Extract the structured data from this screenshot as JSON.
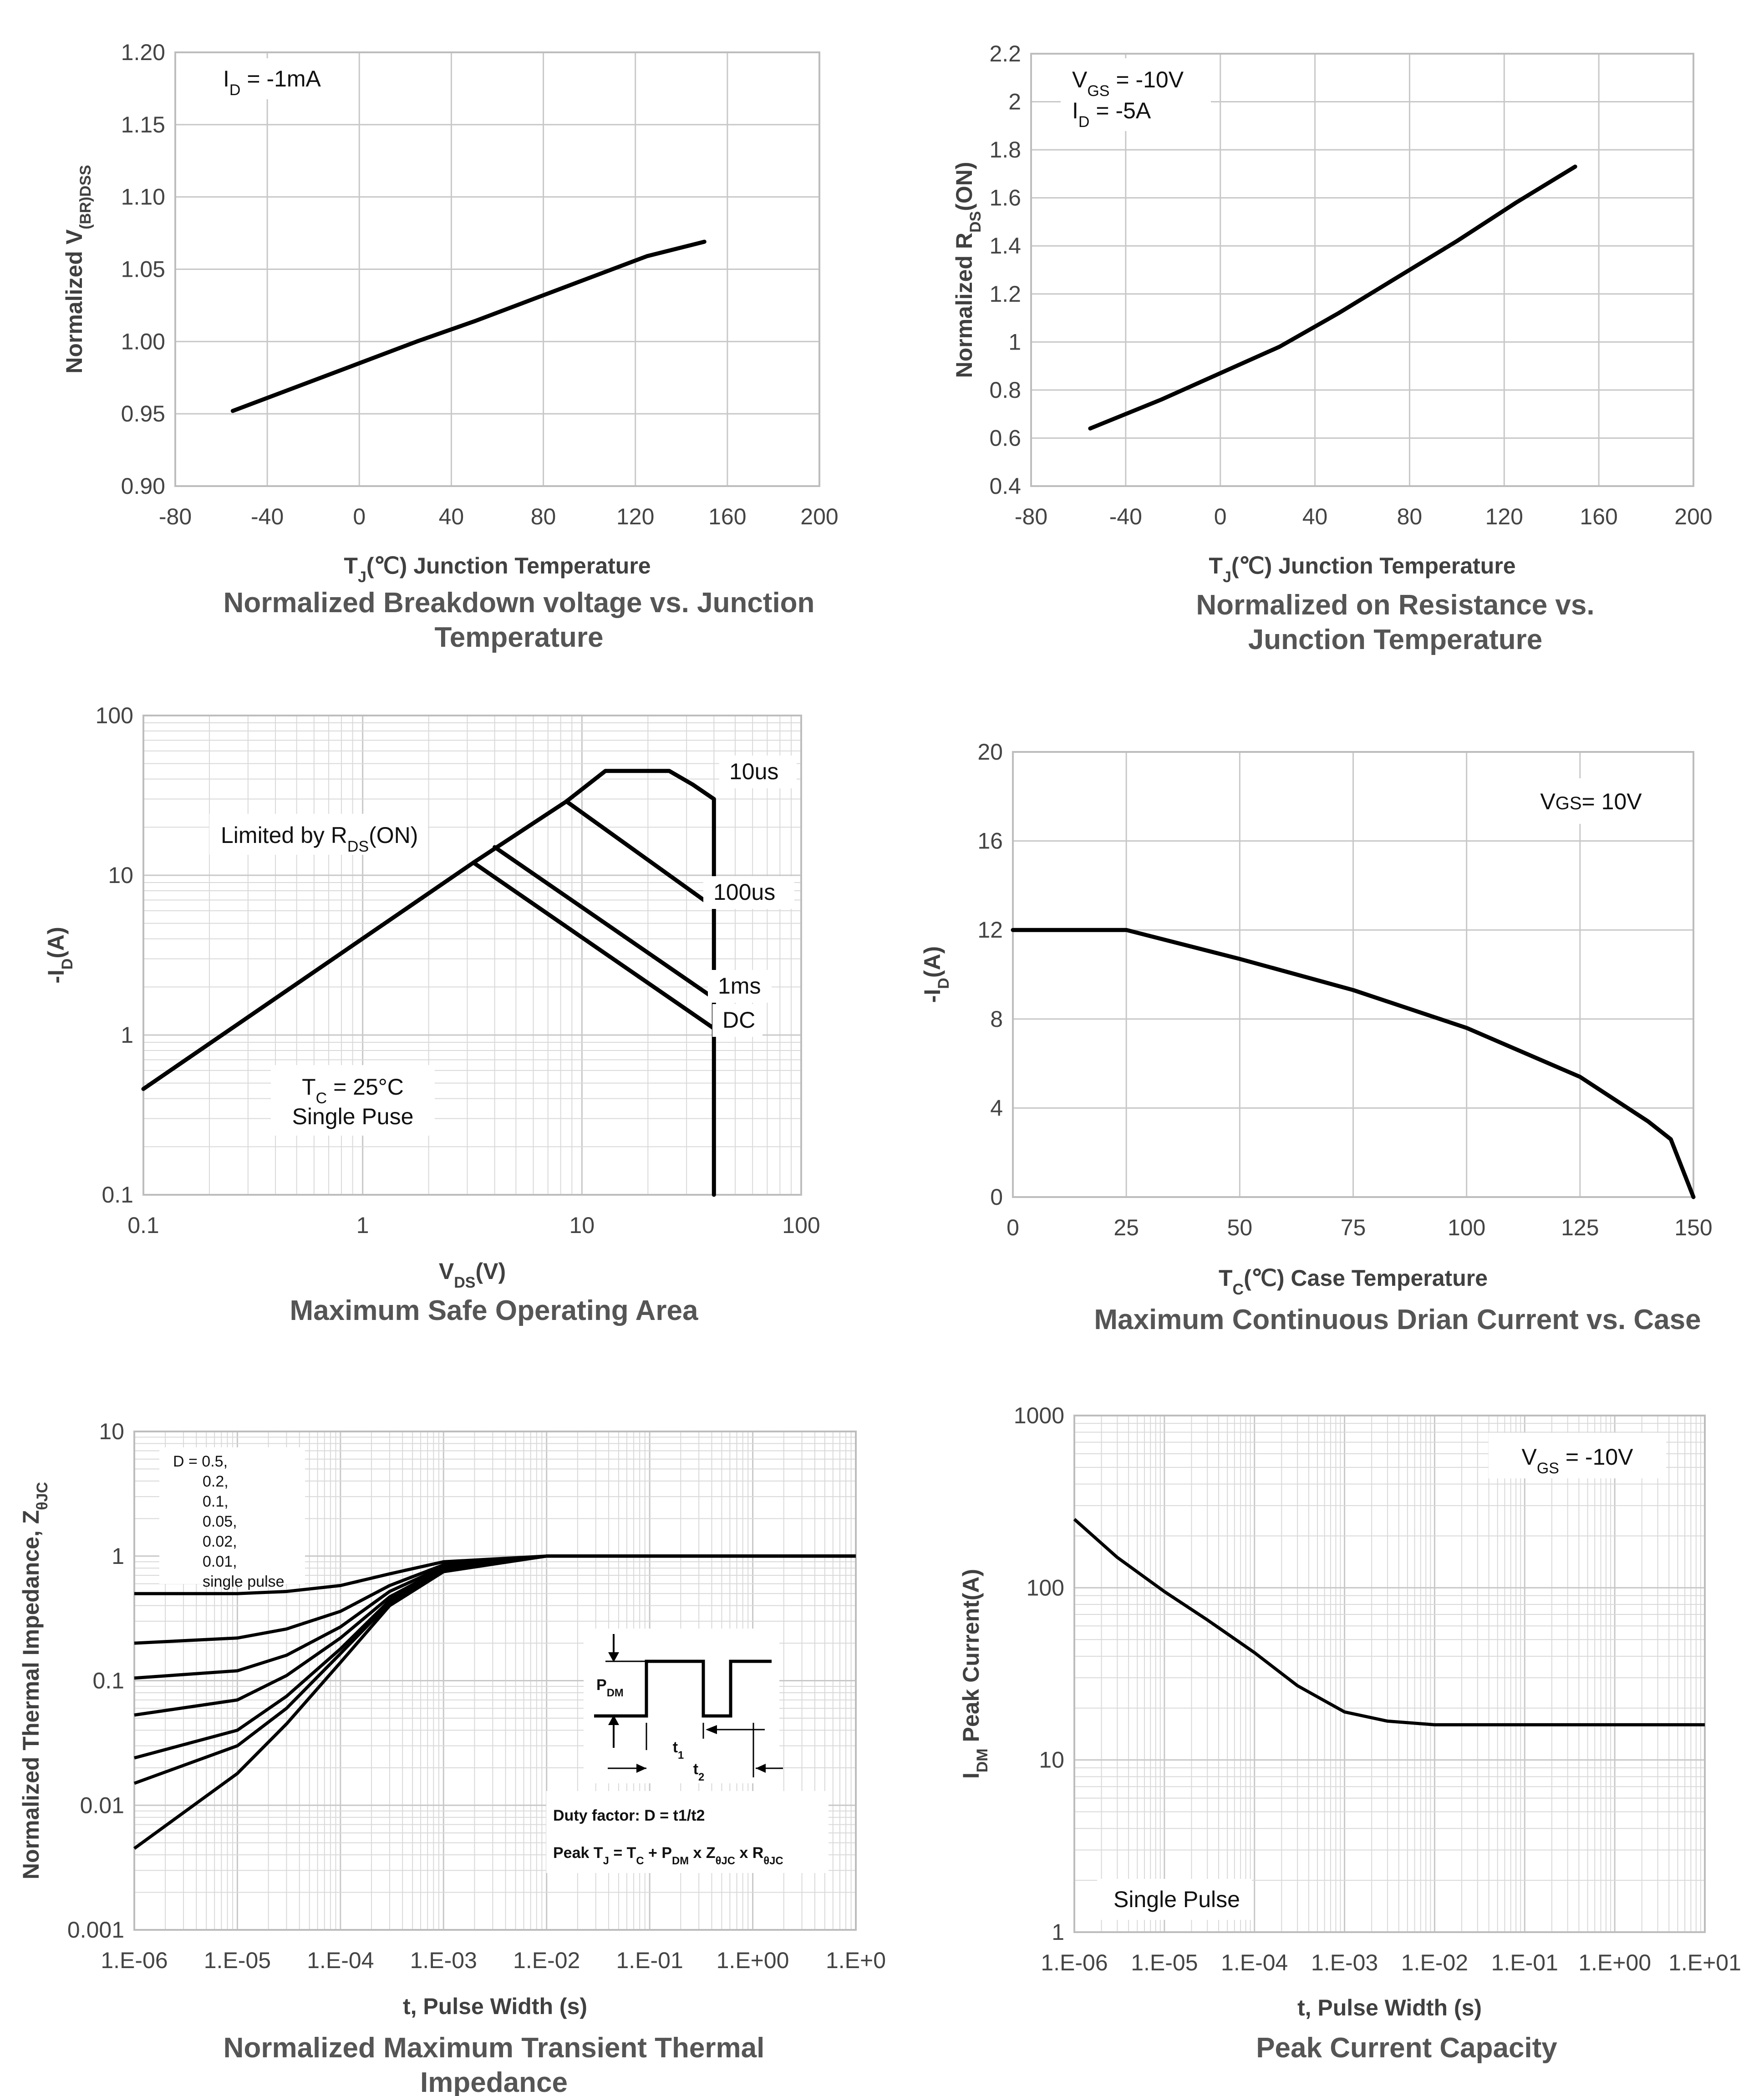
{
  "chart_data": [
    {
      "id": "bv",
      "type": "line",
      "title": [
        "Normalized Breakdown voltage vs. Junction",
        "Temperature"
      ],
      "xlabel": "T_J(℃) Junction Temperature",
      "ylabel": "Normalized V_(BR)DSS",
      "xlim": [
        -80,
        200
      ],
      "ylim": [
        0.9,
        1.2
      ],
      "xticks": [
        "-80",
        "-40",
        "0",
        "40",
        "80",
        "120",
        "160",
        "200"
      ],
      "yticks": [
        "0.90",
        "0.95",
        "1.00",
        "1.05",
        "1.10",
        "1.15",
        "1.20"
      ],
      "annotation": [
        "I_D = -1mA"
      ],
      "series": [
        {
          "x": [
            -55,
            0,
            25,
            50,
            75,
            100,
            125,
            150
          ],
          "y": [
            0.952,
            0.985,
            1.0,
            1.014,
            1.029,
            1.044,
            1.059,
            1.069
          ]
        }
      ]
    },
    {
      "id": "rds",
      "type": "line",
      "title": [
        "Normalized on Resistance vs.",
        "Junction Temperature"
      ],
      "xlabel": "T_J(℃) Junction Temperature",
      "ylabel": "Normalized R_DS(ON)",
      "xlim": [
        -80,
        200
      ],
      "ylim": [
        0.4,
        2.2
      ],
      "xticks": [
        "-80",
        "-40",
        "0",
        "40",
        "80",
        "120",
        "160",
        "200"
      ],
      "yticks": [
        "0.4",
        "0.6",
        "0.8",
        "1",
        "1.2",
        "1.4",
        "1.6",
        "1.8",
        "2",
        "2.2"
      ],
      "annotation": [
        "V_GS = -10V",
        "I_D = -5A"
      ],
      "series": [
        {
          "x": [
            -55,
            -25,
            0,
            25,
            50,
            75,
            100,
            125,
            150
          ],
          "y": [
            0.64,
            0.76,
            0.87,
            0.98,
            1.12,
            1.27,
            1.42,
            1.58,
            1.73
          ]
        }
      ]
    },
    {
      "id": "soa",
      "type": "line",
      "title": [
        "Maximum Safe Operating Area"
      ],
      "xlabel": "V_DS(V)",
      "ylabel": "-I_D(A)",
      "xscale": "log",
      "yscale": "log",
      "xlim": [
        0.1,
        100
      ],
      "ylim": [
        0.1,
        100
      ],
      "xticks": [
        "0.1",
        "1",
        "10",
        "100"
      ],
      "yticks": [
        "0.1",
        "1",
        "10",
        "100"
      ],
      "annotations": [
        "Limited by R_DS(ON)",
        "T_C = 25°C",
        "Single Puse"
      ],
      "series": [
        {
          "name": "10us",
          "x": [
            0.1,
            3.2,
            8.5,
            12.8,
            25,
            32,
            40,
            40
          ],
          "y": [
            0.46,
            12,
            29,
            45,
            45,
            37,
            30,
            0.1
          ]
        },
        {
          "name": "100us",
          "x": [
            8.5,
            40
          ],
          "y": [
            29,
            6.3
          ]
        },
        {
          "name": "1ms",
          "x": [
            4,
            40
          ],
          "y": [
            15,
            1.7
          ]
        },
        {
          "name": "DC",
          "x": [
            3.2,
            40
          ],
          "y": [
            12,
            1.1
          ]
        }
      ]
    },
    {
      "id": "idcase",
      "type": "line",
      "title": [
        "Maximum Continuous Drian Current vs. Case"
      ],
      "xlabel": "T_C(℃) Case Temperature",
      "ylabel": "-I_D(A)",
      "xlim": [
        0,
        150
      ],
      "ylim": [
        0,
        20
      ],
      "xticks": [
        "0",
        "25",
        "50",
        "75",
        "100",
        "125",
        "150"
      ],
      "yticks": [
        "0",
        "4",
        "8",
        "12",
        "16",
        "20"
      ],
      "annotation": [
        "VGS= 10V"
      ],
      "series": [
        {
          "x": [
            0,
            25,
            50,
            75,
            100,
            125,
            140,
            145,
            150
          ],
          "y": [
            12,
            12,
            10.7,
            9.3,
            7.6,
            5.4,
            3.4,
            2.6,
            0
          ]
        }
      ]
    },
    {
      "id": "zth",
      "type": "line",
      "title": [
        "Normalized Maximum Transient Thermal",
        "Impedance"
      ],
      "xlabel": "t, Pulse Width (s)",
      "ylabel": "Normalized Thermal Impedance, Z_θJC",
      "xscale": "log",
      "yscale": "log",
      "xlim": [
        1e-06,
        10
      ],
      "ylim": [
        0.001,
        10
      ],
      "xticks": [
        "1.E-06",
        "1.E-05",
        "1.E-04",
        "1.E-03",
        "1.E-02",
        "1.E-01",
        "1.E+00",
        "1.E+0"
      ],
      "yticks": [
        "0.001",
        "0.01",
        "0.1",
        "1",
        "10"
      ],
      "legend_labels": [
        "D = 0.5,",
        "0.2,",
        "0.1,",
        "0.05,",
        "0.02,",
        "0.01,",
        "single pulse"
      ],
      "inset": {
        "pdm": "P_DM",
        "t1": "t_1",
        "t2": "t_2",
        "duty": "Duty factor: D = t1/t2",
        "peak": "Peak T_J = T_C + P_DM x Z_θJC x R_θJC"
      },
      "series": [
        {
          "name": "0.5",
          "x": [
            1e-06,
            1e-05,
            3e-05,
            0.0001,
            0.0003,
            0.001,
            0.01,
            10
          ],
          "y": [
            0.5,
            0.5,
            0.52,
            0.58,
            0.72,
            0.9,
            1.0,
            1.0
          ]
        },
        {
          "name": "0.2",
          "x": [
            1e-06,
            1e-05,
            3e-05,
            0.0001,
            0.0003,
            0.001,
            0.01,
            10
          ],
          "y": [
            0.2,
            0.22,
            0.26,
            0.36,
            0.58,
            0.85,
            1.0,
            1.0
          ]
        },
        {
          "name": "0.1",
          "x": [
            1e-06,
            1e-05,
            3e-05,
            0.0001,
            0.0003,
            0.001,
            0.01,
            10
          ],
          "y": [
            0.105,
            0.12,
            0.16,
            0.27,
            0.52,
            0.82,
            1.0,
            1.0
          ]
        },
        {
          "name": "0.05",
          "x": [
            1e-06,
            1e-05,
            3e-05,
            0.0001,
            0.0003,
            0.001,
            0.01,
            10
          ],
          "y": [
            0.053,
            0.07,
            0.11,
            0.22,
            0.47,
            0.8,
            1.0,
            1.0
          ]
        },
        {
          "name": "0.02",
          "x": [
            1e-06,
            1e-05,
            3e-05,
            0.0001,
            0.0003,
            0.001,
            0.01,
            10
          ],
          "y": [
            0.024,
            0.04,
            0.075,
            0.18,
            0.44,
            0.78,
            1.0,
            1.0
          ]
        },
        {
          "name": "0.01",
          "x": [
            1e-06,
            1e-05,
            3e-05,
            0.0001,
            0.0003,
            0.001,
            0.01,
            10
          ],
          "y": [
            0.015,
            0.03,
            0.06,
            0.165,
            0.42,
            0.77,
            1.0,
            1.0
          ]
        },
        {
          "name": "single pulse",
          "x": [
            1e-06,
            1e-05,
            3e-05,
            0.0001,
            0.0003,
            0.001,
            0.01,
            10
          ],
          "y": [
            0.0045,
            0.018,
            0.045,
            0.14,
            0.4,
            0.75,
            1.0,
            1.0
          ]
        }
      ]
    },
    {
      "id": "idm",
      "type": "line",
      "title": [
        "Peak Current Capacity"
      ],
      "xlabel": "t, Pulse Width (s)",
      "ylabel": "I_DM Peak Current(A)",
      "xscale": "log",
      "yscale": "log",
      "xlim": [
        1e-06,
        10
      ],
      "ylim": [
        1,
        1000
      ],
      "xticks": [
        "1.E-06",
        "1.E-05",
        "1.E-04",
        "1.E-03",
        "1.E-02",
        "1.E-01",
        "1.E+00",
        "1.E+01"
      ],
      "yticks": [
        "1",
        "10",
        "100",
        "1000"
      ],
      "annotations": [
        "V_GS = -10V",
        "Single Pulse"
      ],
      "series": [
        {
          "x": [
            1e-06,
            3e-06,
            1e-05,
            3e-05,
            0.0001,
            0.0003,
            0.001,
            0.003,
            0.01,
            10
          ],
          "y": [
            250,
            150,
            95,
            65,
            42,
            27,
            19,
            16.8,
            16,
            16
          ]
        }
      ]
    }
  ]
}
